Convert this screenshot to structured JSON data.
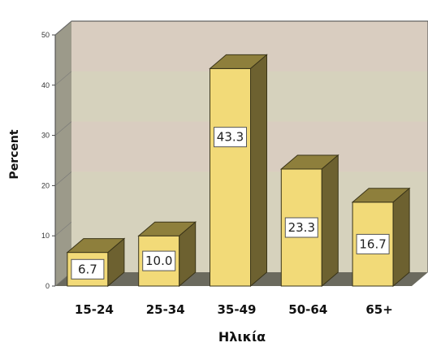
{
  "chart_data": {
    "type": "bar",
    "title": "",
    "xlabel": "Ηλικία",
    "ylabel": "Percent",
    "categories": [
      "15-24",
      "25-34",
      "35-49",
      "50-64",
      "65+"
    ],
    "values": [
      6.7,
      10.0,
      43.3,
      23.3,
      16.7
    ],
    "data_labels": [
      "6.7",
      "10.0",
      "43.3",
      "23.3",
      "16.7"
    ],
    "ylim": [
      0,
      50
    ],
    "yticks": [
      "0",
      "10",
      "20",
      "30",
      "40",
      "50"
    ],
    "style": "3d",
    "grid": false,
    "legend": "none",
    "colors": {
      "bar_front": "#f2da78",
      "bar_top": "#8e7f3c",
      "bar_side": "#6d6130",
      "back_wall": "#d6d2bd",
      "back_wall_band": "#dcc9c2",
      "side_wall": "#9c9a8a",
      "floor": "#6b6a5e",
      "label_box": "#ffffff"
    }
  }
}
